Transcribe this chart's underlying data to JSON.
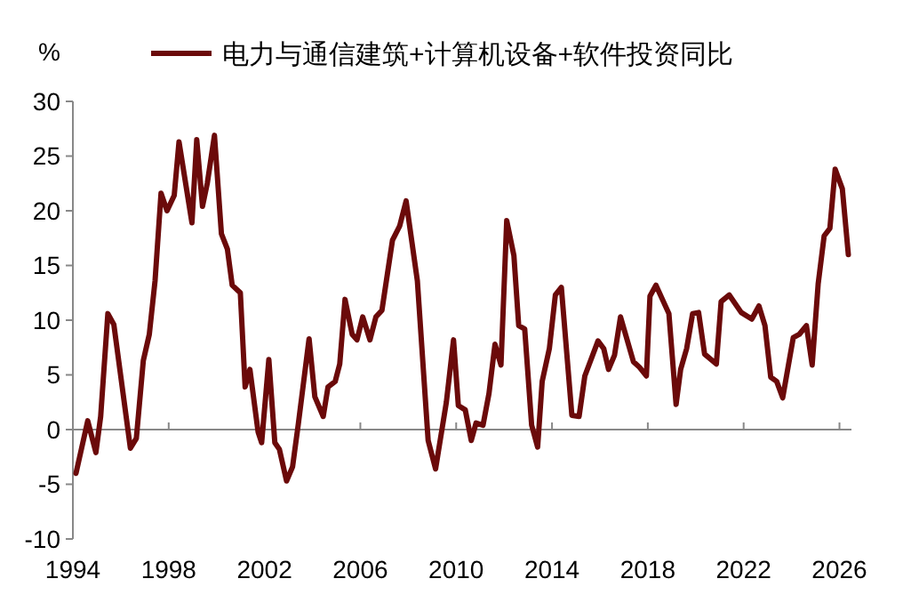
{
  "chart_data": {
    "type": "line",
    "ylabel": "%",
    "legend": "top",
    "xlim": [
      1994,
      2026.5
    ],
    "xticks": [
      1994,
      1998,
      2002,
      2006,
      2010,
      2014,
      2018,
      2022,
      2026
    ],
    "ylim": [
      -10,
      30
    ],
    "yticks": [
      -10,
      -5,
      0,
      5,
      10,
      15,
      20,
      25,
      30
    ],
    "line_style": "solid",
    "marker": "none",
    "series": [
      {
        "name": "电力与通信建筑+计算机设备+软件投资同比",
        "color": "#6b0a0a",
        "x": [
          1994.13,
          1994.62,
          1994.96,
          1995.16,
          1995.46,
          1995.71,
          1996.4,
          1996.65,
          1996.94,
          1997.19,
          1997.43,
          1997.68,
          1997.93,
          1998.23,
          1998.43,
          1998.97,
          1999.17,
          1999.41,
          1999.61,
          1999.91,
          2000.2,
          2000.45,
          2000.65,
          2000.99,
          2001.19,
          2001.39,
          2001.73,
          2001.88,
          2002.18,
          2002.43,
          2002.62,
          2002.92,
          2003.17,
          2003.41,
          2003.86,
          2004.1,
          2004.45,
          2004.65,
          2004.95,
          2005.14,
          2005.36,
          2005.66,
          2005.86,
          2006.1,
          2006.4,
          2006.65,
          2006.9,
          2007.34,
          2007.64,
          2007.91,
          2008.38,
          2008.83,
          2009.14,
          2009.59,
          2009.89,
          2010.09,
          2010.38,
          2010.63,
          2010.83,
          2011.12,
          2011.37,
          2011.62,
          2011.87,
          2012.11,
          2012.41,
          2012.61,
          2012.86,
          2013.15,
          2013.4,
          2013.59,
          2013.89,
          2014.14,
          2014.39,
          2014.83,
          2015.13,
          2015.37,
          2015.92,
          2016.16,
          2016.36,
          2016.61,
          2016.86,
          2017.4,
          2017.65,
          2017.94,
          2018.09,
          2018.34,
          2018.88,
          2019.18,
          2019.37,
          2019.62,
          2019.87,
          2020.12,
          2020.37,
          2020.86,
          2021.06,
          2021.4,
          2021.9,
          2022.34,
          2022.64,
          2022.89,
          2023.13,
          2023.38,
          2023.63,
          2024.07,
          2024.32,
          2024.62,
          2024.86,
          2025.11,
          2025.36,
          2025.6,
          2025.82,
          2026.12,
          2026.37
        ],
        "values": [
          -4.0,
          0.8,
          -2.1,
          1.2,
          10.6,
          9.6,
          -1.7,
          -0.8,
          6.3,
          8.7,
          13.6,
          21.6,
          20.0,
          21.4,
          26.3,
          18.9,
          26.5,
          20.4,
          22.5,
          26.9,
          17.9,
          16.5,
          13.2,
          12.5,
          3.9,
          5.5,
          -0.2,
          -1.2,
          6.4,
          -1.2,
          -1.8,
          -4.7,
          -3.4,
          0.5,
          8.3,
          3.0,
          1.2,
          3.9,
          4.4,
          6.0,
          11.9,
          8.7,
          8.2,
          10.3,
          8.2,
          10.3,
          10.9,
          17.3,
          18.6,
          20.9,
          13.6,
          -1.0,
          -3.6,
          2.5,
          8.2,
          2.2,
          1.8,
          -1.0,
          0.6,
          0.4,
          3.3,
          7.8,
          5.9,
          19.1,
          15.9,
          9.5,
          9.2,
          0.4,
          -1.6,
          4.4,
          7.4,
          12.3,
          13.0,
          1.3,
          1.2,
          4.9,
          8.1,
          7.4,
          5.5,
          6.8,
          10.3,
          6.2,
          5.7,
          4.9,
          12.2,
          13.2,
          10.6,
          2.3,
          5.5,
          7.4,
          10.6,
          10.7,
          6.9,
          6.0,
          11.7,
          12.3,
          10.7,
          10.1,
          11.3,
          9.5,
          4.8,
          4.4,
          2.9,
          8.4,
          8.7,
          9.5,
          5.9,
          13.3,
          17.7,
          18.4,
          23.8,
          22.0,
          16.0
        ]
      }
    ]
  }
}
